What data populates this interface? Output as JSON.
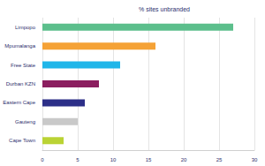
{
  "chart_data": {
    "type": "bar",
    "title": "% sites unbranded",
    "orientation": "horizontal",
    "categories": [
      "Limpopo",
      "Mpumalanga",
      "Free State",
      "Durban KZN",
      "Eastern Cape",
      "Gauteng",
      "Cape Town"
    ],
    "values": [
      27,
      16,
      11,
      8,
      6,
      5,
      3
    ],
    "colors": [
      "#5cbf8c",
      "#f5a236",
      "#1fb6e9",
      "#8b1e5f",
      "#2c2f88",
      "#c9c9c9",
      "#bad334"
    ],
    "xlim": [
      0,
      30
    ],
    "xticks": [
      0,
      5,
      10,
      15,
      20,
      25,
      30
    ],
    "grid": true
  }
}
